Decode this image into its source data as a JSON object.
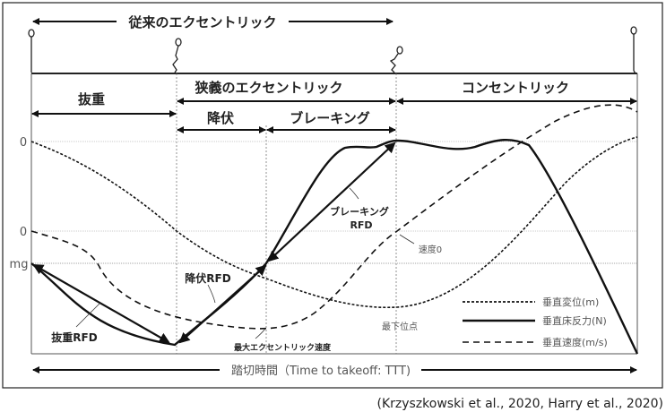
{
  "header": {
    "conventional_eccentric": "従来のエクセントリック",
    "narrow_eccentric": "狭義のエクセントリック",
    "concentric": "コンセントリック",
    "unweighting": "抜重",
    "yielding": "降伏",
    "braking": "ブレーキング"
  },
  "axis_labels": {
    "zero_top": "0",
    "zero_mid": "0",
    "mg": "mg"
  },
  "annotations": {
    "unweighting_rfd": "抜重RFD",
    "yielding_rfd": "降伏RFD",
    "braking_rfd_line1": "ブレーキング",
    "braking_rfd_line2": "RFD",
    "max_eccentric_velocity": "最大エクセントリック速度",
    "lowest_point": "最下位点",
    "velocity_zero": "速度0"
  },
  "legend": {
    "displacement": "垂直変位(m)",
    "force": "垂直床反力(N)",
    "velocity": "垂直速度(m/s)"
  },
  "timeline": "踏切時間（Time to takeoff: TTT)",
  "citation": "(Krzyszkowski et al., 2020, Harry et al., 2020)",
  "colors": {
    "line": "#111111",
    "grid": "#999999",
    "border": "#222222"
  }
}
